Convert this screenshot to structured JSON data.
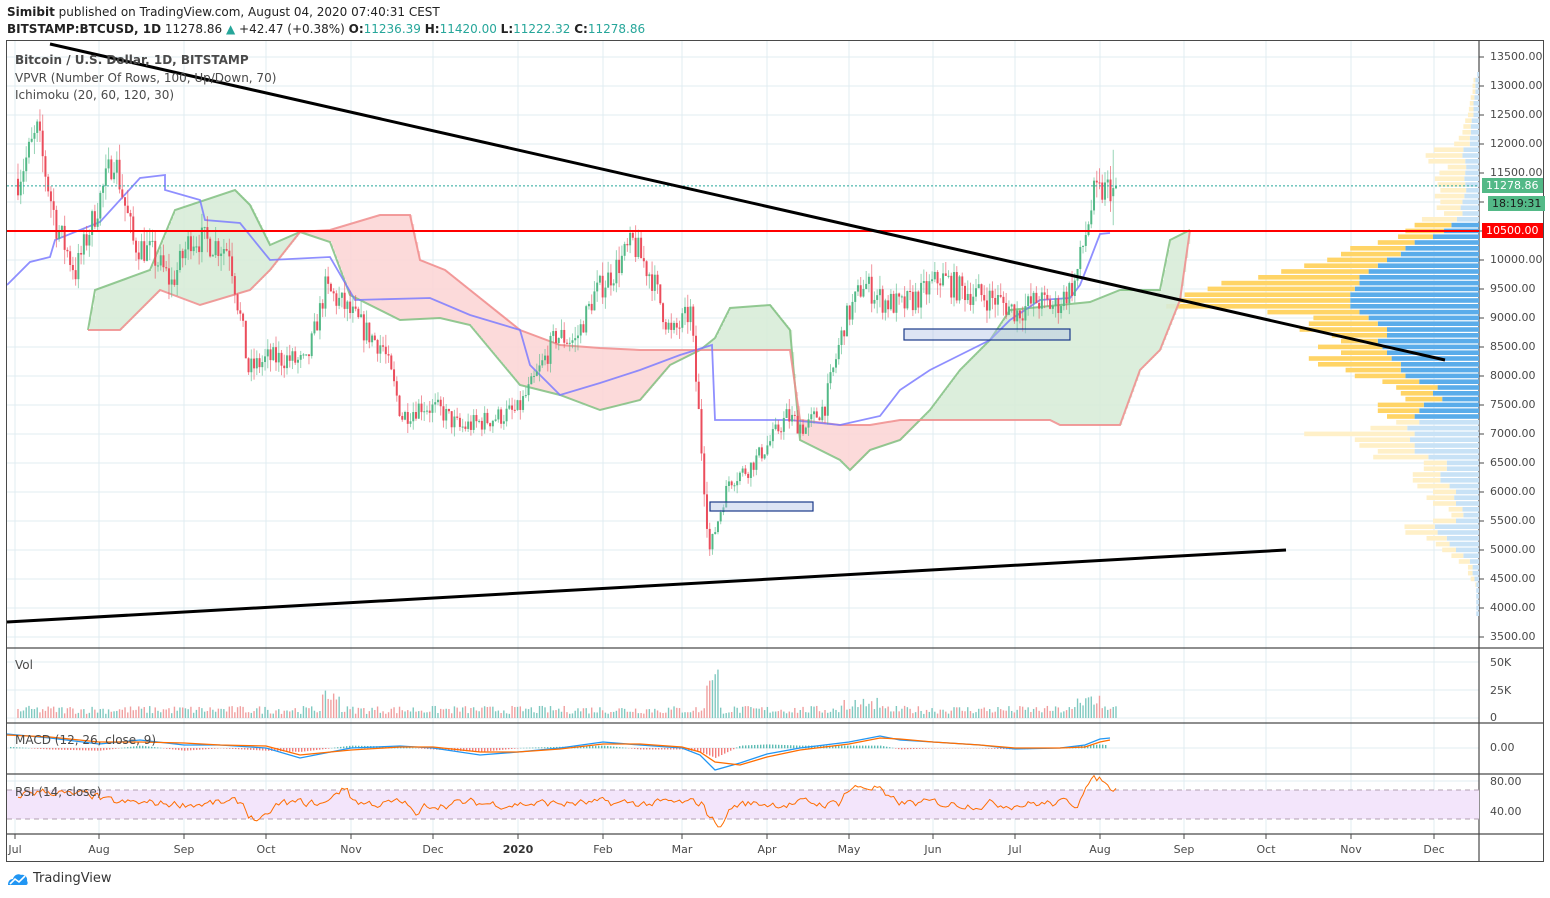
{
  "header": {
    "author": "Simibit",
    "published_text": "published on TradingView.com, August 04, 2020 07:40:31 CEST",
    "symbol": "BITSTAMP:BTCUSD, 1D",
    "last": "11278.86",
    "change": "+42.47 (+0.38%)",
    "change_direction_icon": "triangle-up-icon",
    "open_label": "O:",
    "open": "11236.39",
    "high_label": "H:",
    "high": "11420.00",
    "low_label": "L:",
    "low": "11222.32",
    "close_label": "C:",
    "close": "11278.86"
  },
  "legend": {
    "series": "Bitcoin / U.S. Dollar, 1D, BITSTAMP",
    "vpvr": "VPVR (Number Of Rows, 100, Up/Down, 70)",
    "ichimoku": "Ichimoku (20, 60, 120, 30)"
  },
  "panes": {
    "volume_label": "Vol",
    "macd_label": "MACD (12, 26, close, 9)",
    "rsi_label": "RSI (14, close)"
  },
  "price_axis": {
    "ticks": [
      "13500.00",
      "13000.00",
      "12500.00",
      "12000.00",
      "11500.00",
      "11000.00",
      "10500.00",
      "10000.00",
      "9500.00",
      "9000.00",
      "8500.00",
      "8000.00",
      "7500.00",
      "7000.00",
      "6500.00",
      "6000.00",
      "5500.00",
      "5000.00",
      "4500.00",
      "4000.00",
      "3500.00"
    ],
    "last_price_tag": "11278.86",
    "countdown_tag": "18:19:31",
    "horizontal_line_tag": "10500.00"
  },
  "volume_axis": {
    "ticks": [
      "50K",
      "25K",
      "0"
    ]
  },
  "macd_axis": {
    "ticks": [
      "0.00"
    ]
  },
  "rsi_axis": {
    "ticks": [
      "80.00",
      "40.00"
    ]
  },
  "time_axis": {
    "labels": [
      "Jul",
      "Aug",
      "Sep",
      "Oct",
      "Nov",
      "Dec",
      "2020",
      "Feb",
      "Mar",
      "Apr",
      "May",
      "Jun",
      "Jul",
      "Aug",
      "Sep",
      "Oct",
      "Nov",
      "Dec"
    ]
  },
  "footer": {
    "brand": "TradingView"
  },
  "colors": {
    "up": "#26a69a",
    "up_candle": "#53b987",
    "down": "#eb4d5c",
    "hline": "#ff0000",
    "trendline": "#000000",
    "tenkan": "#7b7bff",
    "kijun": "#f08080",
    "cloud_bull": "#d8ecd8",
    "cloud_bear": "#fcd6d6",
    "vpvr_up": "#5aacea",
    "vpvr_down": "#ffd466",
    "vpvr_up_light": "#c8e2f6",
    "vpvr_down_light": "#fff0c8",
    "macd": "#2196f3",
    "signal": "#ff6d00",
    "rsi": "#ff6d00",
    "rsi_band": "#f3e5fb"
  },
  "chart_data": {
    "type": "candlestick",
    "title": "Bitcoin / U.S. Dollar, 1D, BITSTAMP",
    "xlabel": "",
    "ylabel": "USD",
    "ylim": [
      3500,
      13500
    ],
    "x_ticks": [
      "Jul 2019",
      "Aug",
      "Sep",
      "Oct",
      "Nov",
      "Dec",
      "2020",
      "Feb",
      "Mar",
      "Apr",
      "May",
      "Jun",
      "Jul",
      "Aug",
      "Sep",
      "Oct",
      "Nov",
      "Dec"
    ],
    "approx_weekly_closes": {
      "dates": [
        "2019-07-01",
        "2019-07-08",
        "2019-07-15",
        "2019-07-22",
        "2019-07-29",
        "2019-08-05",
        "2019-08-12",
        "2019-08-19",
        "2019-08-26",
        "2019-09-02",
        "2019-09-09",
        "2019-09-16",
        "2019-09-23",
        "2019-09-30",
        "2019-10-07",
        "2019-10-14",
        "2019-10-21",
        "2019-10-28",
        "2019-11-04",
        "2019-11-11",
        "2019-11-18",
        "2019-11-25",
        "2019-12-02",
        "2019-12-09",
        "2019-12-16",
        "2019-12-23",
        "2019-12-30",
        "2020-01-06",
        "2020-01-13",
        "2020-01-20",
        "2020-01-27",
        "2020-02-03",
        "2020-02-10",
        "2020-02-17",
        "2020-02-24",
        "2020-03-02",
        "2020-03-09",
        "2020-03-16",
        "2020-03-23",
        "2020-03-30",
        "2020-04-06",
        "2020-04-13",
        "2020-04-20",
        "2020-04-27",
        "2020-05-04",
        "2020-05-11",
        "2020-05-18",
        "2020-05-25",
        "2020-06-01",
        "2020-06-08",
        "2020-06-15",
        "2020-06-22",
        "2020-06-29",
        "2020-07-06",
        "2020-07-13",
        "2020-07-20",
        "2020-07-27",
        "2020-08-03"
      ],
      "close": [
        11400,
        12200,
        10600,
        9800,
        10800,
        11800,
        10300,
        10100,
        9600,
        10400,
        10300,
        10200,
        8100,
        8300,
        8300,
        8200,
        9500,
        9200,
        8800,
        8500,
        7300,
        7500,
        7400,
        7100,
        7200,
        7300,
        7400,
        8000,
        8700,
        8600,
        9400,
        9800,
        10300,
        9700,
        8700,
        9100,
        5000,
        6200,
        6400,
        6800,
        7300,
        7100,
        7500,
        8900,
        9600,
        9300,
        9200,
        9400,
        9700,
        9500,
        9400,
        9300,
        9100,
        9300,
        9200,
        9600,
        11100,
        11278.86
      ]
    },
    "annotations": {
      "horizontal_line": 10500,
      "descending_trendline": {
        "from": [
          "2019-07-13",
          13700
        ],
        "to": [
          "2020-11-30",
          8250
        ]
      },
      "ascending_trendline": {
        "from": [
          "2019-06-28",
          3750
        ],
        "to": [
          "2020-10-15",
          5000
        ]
      },
      "support_boxes": [
        {
          "from": "2020-03-13",
          "to": "2020-04-20",
          "low": 5600,
          "high": 5800
        },
        {
          "from": "2020-05-21",
          "to": "2020-07-21",
          "low": 8650,
          "high": 8800
        }
      ],
      "last_price": 11278.86
    },
    "indicators": {
      "volume": {
        "ylim": [
          0,
          55000
        ],
        "ticks": [
          0,
          25000,
          50000
        ],
        "peak": {
          "date": "2020-03-12",
          "value": 52000
        }
      },
      "macd": {
        "params": [
          12,
          26,
          "close",
          9
        ],
        "zero_line": 0
      },
      "rsi": {
        "params": [
          14,
          "close"
        ],
        "bands": [
          70,
          30
        ],
        "ticks": [
          80,
          40
        ],
        "last": 70
      }
    },
    "legend_position": "top-left",
    "grid": true
  }
}
